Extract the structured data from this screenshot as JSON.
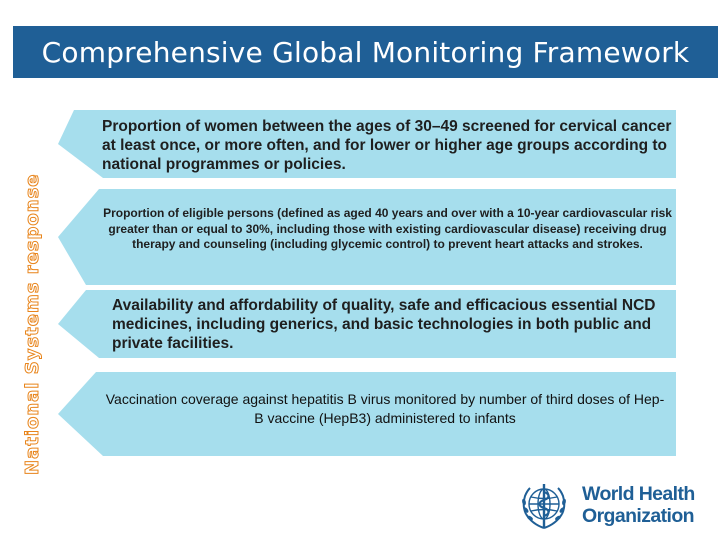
{
  "title": "Comprehensive Global Monitoring Framework",
  "side_label": "National Systems response",
  "indicators": [
    "Proportion of women between the ages of 30–49 screened for cervical cancer at least once, or more often, and for lower or higher age groups according to national programmes or policies.",
    "Proportion of eligible persons (defined as aged 40 years and over with a 10-year cardiovascular risk greater than or equal to 30%, including those with existing cardiovascular disease) receiving drug therapy and counseling (including glycemic control) to prevent heart attacks and strokes.",
    "Availability and affordability of quality, safe and efficacious essential NCD medicines, including generics, and basic technologies in both public and private facilities.",
    "Vaccination coverage against hepatitis B virus monitored by number of third doses of Hep-B vaccine (HepB3) administered to infants"
  ],
  "logo": {
    "line1": "World Health",
    "line2": "Organization"
  },
  "colors": {
    "title_bar": "#1f5f96",
    "box_fill": "#a6deed",
    "side_label_outline": "#e8851c"
  }
}
